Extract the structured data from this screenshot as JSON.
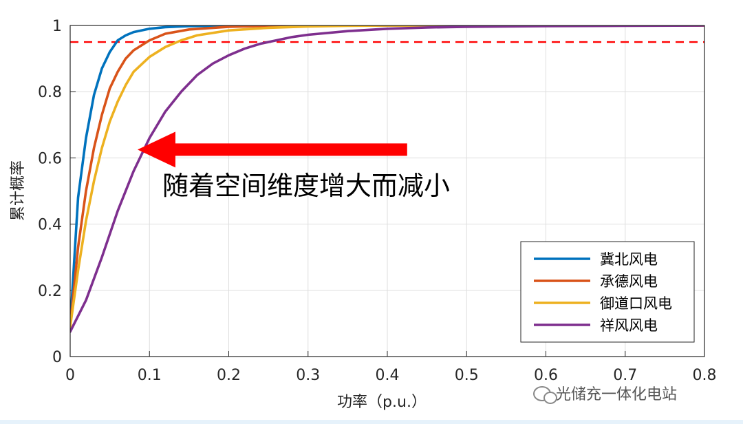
{
  "chart_data": {
    "type": "line",
    "xlabel": "功率（p.u.）",
    "ylabel": "累计概率",
    "xlim": [
      0,
      0.8
    ],
    "ylim": [
      0,
      1
    ],
    "xticks": [
      "0",
      "0.1",
      "0.2",
      "0.3",
      "0.4",
      "0.5",
      "0.6",
      "0.7",
      "0.8"
    ],
    "yticks": [
      "0",
      "0.2",
      "0.4",
      "0.6",
      "0.8",
      "1"
    ],
    "grid": true,
    "legend_position": "bottom-right",
    "reference_line": {
      "y": 0.95,
      "style": "dashed",
      "color": "#ff0000"
    },
    "series": [
      {
        "name": "冀北风电",
        "color": "#0072bd",
        "x": [
          0,
          0.01,
          0.02,
          0.03,
          0.04,
          0.05,
          0.06,
          0.07,
          0.08,
          0.1,
          0.12,
          0.15,
          0.2,
          0.3,
          0.8
        ],
        "y": [
          0.09,
          0.48,
          0.66,
          0.79,
          0.87,
          0.92,
          0.955,
          0.97,
          0.98,
          0.99,
          0.995,
          0.998,
          0.999,
          1.0,
          1.0
        ]
      },
      {
        "name": "承德风电",
        "color": "#d95319",
        "x": [
          0,
          0.01,
          0.02,
          0.03,
          0.04,
          0.05,
          0.06,
          0.07,
          0.08,
          0.1,
          0.12,
          0.15,
          0.2,
          0.25,
          0.3,
          0.4,
          0.8
        ],
        "y": [
          0.09,
          0.33,
          0.5,
          0.63,
          0.73,
          0.81,
          0.86,
          0.9,
          0.925,
          0.955,
          0.975,
          0.988,
          0.996,
          0.999,
          1.0,
          1.0,
          1.0
        ]
      },
      {
        "name": "御道口风电",
        "color": "#edb120",
        "x": [
          0,
          0.01,
          0.02,
          0.03,
          0.04,
          0.05,
          0.06,
          0.07,
          0.08,
          0.1,
          0.12,
          0.14,
          0.16,
          0.2,
          0.25,
          0.3,
          0.35,
          0.4,
          0.5,
          0.8
        ],
        "y": [
          0.09,
          0.26,
          0.41,
          0.53,
          0.63,
          0.71,
          0.77,
          0.82,
          0.86,
          0.905,
          0.935,
          0.955,
          0.97,
          0.985,
          0.993,
          0.997,
          0.999,
          1.0,
          1.0,
          1.0
        ]
      },
      {
        "name": "祥风风电",
        "color": "#7e2f8e",
        "x": [
          0,
          0.02,
          0.04,
          0.06,
          0.08,
          0.1,
          0.12,
          0.14,
          0.16,
          0.18,
          0.2,
          0.22,
          0.24,
          0.26,
          0.28,
          0.3,
          0.35,
          0.4,
          0.45,
          0.5,
          0.6,
          0.7,
          0.8
        ],
        "y": [
          0.075,
          0.17,
          0.3,
          0.44,
          0.56,
          0.66,
          0.74,
          0.8,
          0.85,
          0.885,
          0.91,
          0.93,
          0.945,
          0.955,
          0.965,
          0.972,
          0.983,
          0.99,
          0.994,
          0.996,
          0.998,
          0.999,
          1.0
        ]
      }
    ],
    "annotations": [
      {
        "text": "随着空间维度增大而减小",
        "arrow_from": [
          0.425,
          0.625
        ],
        "arrow_to": [
          0.085,
          0.625
        ],
        "arrow_color": "#ff0000"
      }
    ]
  },
  "watermark": {
    "text": "光储充一体化电站",
    "icon": "wechat-icon"
  }
}
